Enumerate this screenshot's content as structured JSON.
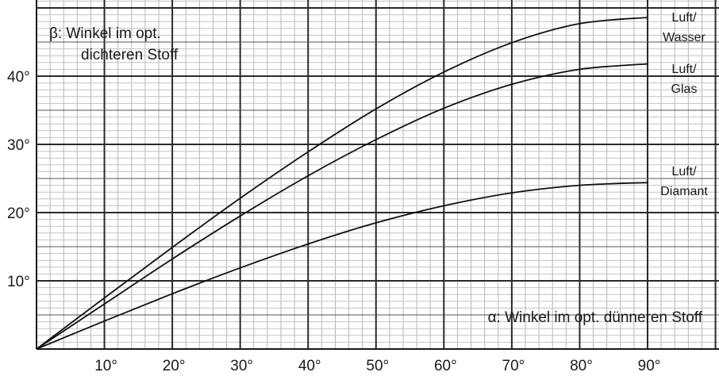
{
  "chart_data": {
    "type": "line",
    "ylabel_lines": [
      "β: Winkel im opt.",
      "dichteren Stoff"
    ],
    "xlabel": "α: Winkel im opt. dünneren Stoff",
    "xlim": [
      0,
      90
    ],
    "ylim": [
      0,
      50
    ],
    "x_ticks": [
      10,
      20,
      30,
      40,
      50,
      60,
      70,
      80,
      90
    ],
    "x_tick_labels": [
      "10°",
      "20°",
      "30°",
      "40°",
      "50°",
      "60°",
      "70°",
      "80°",
      "90°"
    ],
    "y_ticks": [
      10,
      20,
      30,
      40
    ],
    "y_tick_labels": [
      "10°",
      "20°",
      "30°",
      "40°"
    ],
    "grid": true,
    "series": [
      {
        "name_lines": [
          "Luft/",
          "Wasser"
        ],
        "x": [
          0,
          10,
          20,
          30,
          40,
          50,
          60,
          70,
          80,
          90
        ],
        "y": [
          0,
          7.5,
          14.9,
          22.1,
          28.9,
          35.2,
          40.6,
          44.9,
          47.7,
          48.6
        ]
      },
      {
        "name_lines": [
          "Luft/",
          "Glas"
        ],
        "x": [
          0,
          10,
          20,
          30,
          40,
          50,
          60,
          70,
          80,
          90
        ],
        "y": [
          0,
          6.6,
          13.2,
          19.5,
          25.4,
          30.7,
          35.3,
          38.8,
          41.0,
          41.8
        ]
      },
      {
        "name_lines": [
          "Luft/",
          "Diamant"
        ],
        "x": [
          0,
          10,
          20,
          30,
          40,
          50,
          60,
          70,
          80,
          90
        ],
        "y": [
          0,
          4.1,
          8.1,
          11.9,
          15.4,
          18.5,
          21.0,
          22.9,
          24.0,
          24.4
        ]
      }
    ]
  }
}
